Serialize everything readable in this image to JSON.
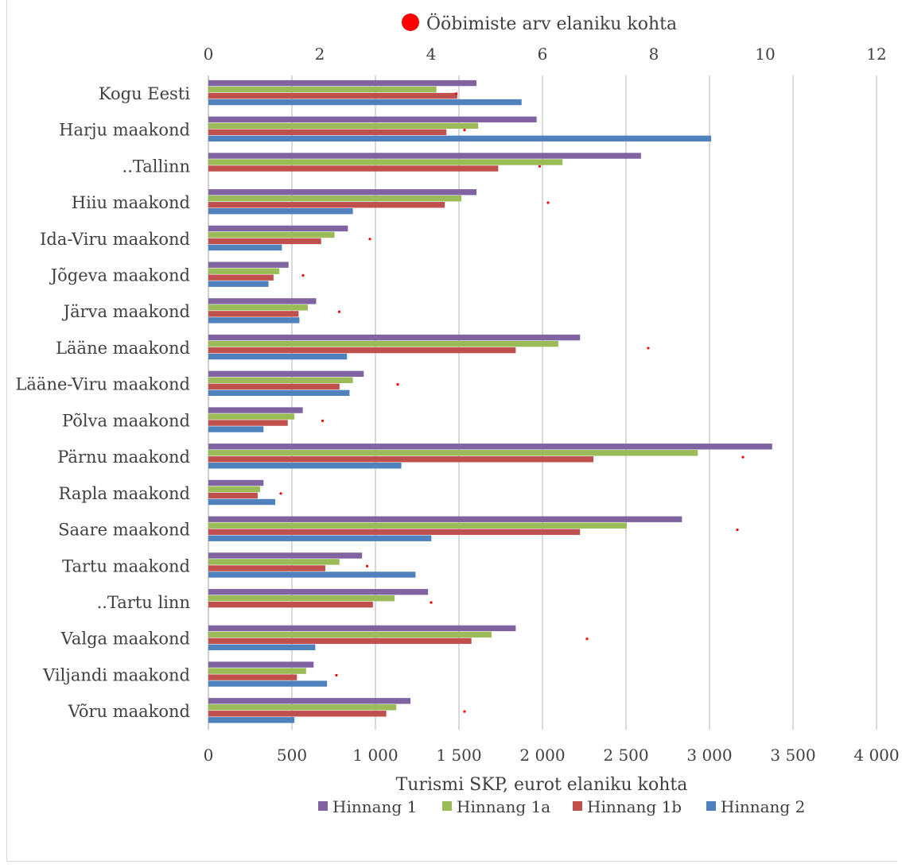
{
  "chart_data": {
    "type": "bar",
    "orientation": "horizontal",
    "title": "",
    "xlabel": "Turismi SKP, eurot elaniku kohta",
    "xlim": [
      0,
      4000
    ],
    "x_ticks": [
      "0",
      "500",
      "1 000",
      "1 500",
      "2 000",
      "2 500",
      "3 000",
      "3 500",
      "4 000"
    ],
    "secondary_xlim": [
      0,
      12
    ],
    "secondary_x_ticks": [
      "0",
      "2",
      "4",
      "6",
      "8",
      "10",
      "12"
    ],
    "grid": true,
    "legend_placement": "bottom",
    "categories": [
      "Kogu Eesti",
      "Harju maakond",
      "..Tallinn",
      "Hiiu maakond",
      "Ida-Viru maakond",
      "Jõgeva maakond",
      "Järva maakond",
      "Lääne maakond",
      "Lääne-Viru maakond",
      "Põlva maakond",
      "Pärnu maakond",
      "Rapla maakond",
      "Saare maakond",
      "Tartu maakond",
      "..Tartu linn",
      "Valga maakond",
      "Viljandi maakond",
      "Võru maakond"
    ],
    "series": [
      {
        "name": "Hinnang 1",
        "color": "#8064a2",
        "values": [
          1605,
          1965,
          2590,
          1605,
          835,
          480,
          645,
          2225,
          930,
          565,
          3375,
          330,
          2835,
          920,
          1315,
          1840,
          630,
          1210
        ]
      },
      {
        "name": "Hinnang 1a",
        "color": "#9bbb59",
        "values": [
          1365,
          1615,
          2120,
          1515,
          755,
          425,
          595,
          2095,
          865,
          515,
          2930,
          310,
          2505,
          785,
          1115,
          1695,
          585,
          1125
        ]
      },
      {
        "name": "Hinnang 1b",
        "color": "#c0504d",
        "values": [
          1490,
          1425,
          1735,
          1415,
          675,
          390,
          540,
          1840,
          785,
          475,
          2305,
          295,
          2225,
          700,
          985,
          1575,
          530,
          1065
        ]
      },
      {
        "name": "Hinnang 2",
        "color": "#4f81bd",
        "values": [
          1875,
          3010,
          null,
          865,
          440,
          360,
          545,
          830,
          845,
          330,
          1155,
          400,
          1335,
          1240,
          null,
          640,
          710,
          515
        ]
      }
    ],
    "secondary_series": {
      "name": "Ööbimiste arv elaniku kohta",
      "color": "#ff0000",
      "type": "scatter",
      "values": [
        4.45,
        4.6,
        5.95,
        6.1,
        2.9,
        1.7,
        2.35,
        7.9,
        3.4,
        2.05,
        9.6,
        1.3,
        9.5,
        2.85,
        4.0,
        6.8,
        2.3,
        4.6
      ]
    }
  }
}
